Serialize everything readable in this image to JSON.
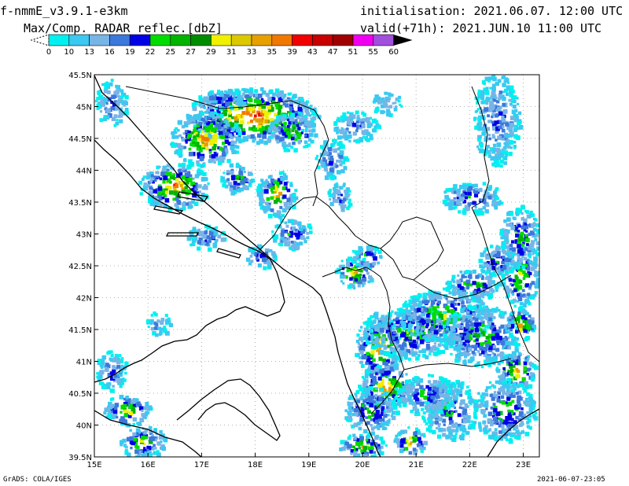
{
  "header": {
    "model": "f-nmmE_v3.9.1-e3km",
    "field": "Max/Comp. RADAR reflec.[dbZ]",
    "initialisation": "initialisation: 2021.06.07. 12:00 UTC",
    "valid": "valid(+71h): 2021.JUN.10 11:00 UTC"
  },
  "colorbar": {
    "labels": [
      "0",
      "10",
      "13",
      "16",
      "19",
      "22",
      "25",
      "27",
      "29",
      "31",
      "33",
      "35",
      "39",
      "43",
      "47",
      "51",
      "55",
      "60"
    ],
    "colors": [
      "#00f0f0",
      "#3cc8f0",
      "#78b4e6",
      "#3c78dc",
      "#0000e6",
      "#00dc00",
      "#00b400",
      "#008c00",
      "#f0f000",
      "#dcc800",
      "#e6a000",
      "#f07800",
      "#f00000",
      "#c80000",
      "#a00000",
      "#f000f0",
      "#a050dc",
      "#000000"
    ]
  },
  "map": {
    "lat_labels": [
      "45.5N",
      "45N",
      "44.5N",
      "44N",
      "43.5N",
      "43N",
      "42.5N",
      "42N",
      "41.5N",
      "41N",
      "40.5N",
      "40N",
      "39.5N"
    ],
    "lon_labels": [
      "15E",
      "16E",
      "17E",
      "18E",
      "19E",
      "20E",
      "21E",
      "22E",
      "23E"
    ],
    "lat_values": [
      45.5,
      45,
      44.5,
      44,
      43.5,
      43,
      42.5,
      42,
      41.5,
      41,
      40.5,
      40,
      39.5
    ],
    "lon_values": [
      15,
      16,
      17,
      18,
      19,
      20,
      21,
      22,
      23
    ],
    "extent": {
      "lon": [
        15,
        23.3
      ],
      "lat": [
        39.5,
        45.5
      ]
    }
  },
  "footer": {
    "credit": "GrADS: COLA/IGES",
    "timestamp": "2021-06-07-23:05"
  }
}
